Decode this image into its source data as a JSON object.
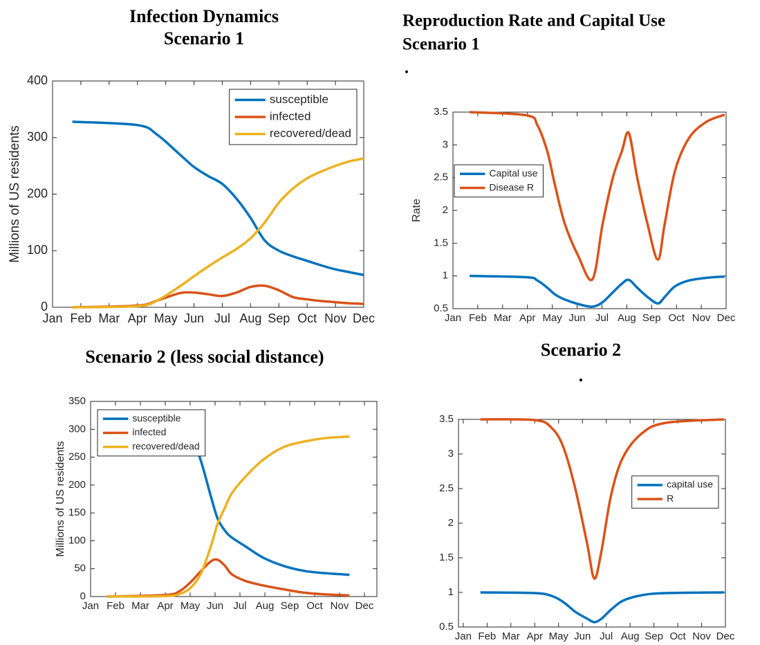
{
  "chart_data": [
    {
      "type": "line",
      "title": "Infection Dynamics",
      "subtitle": "Scenario 1",
      "y_label": "Millions of US residents",
      "x": [
        1.7,
        4.0,
        4.7,
        5.5,
        6.0,
        6.5,
        7.0,
        7.5,
        8.0,
        8.5,
        9.0,
        9.5,
        10.0,
        10.5,
        11.0,
        11.5,
        12.0
      ],
      "series": [
        {
          "name": "susceptible",
          "color": "#0072BD",
          "values": [
            328,
            322,
            305,
            270,
            248,
            232,
            218,
            192,
            158,
            118,
            100,
            90,
            82,
            74,
            67,
            62,
            57
          ]
        },
        {
          "name": "infected",
          "color": "#D95319",
          "values": [
            0,
            3,
            12,
            25,
            26,
            23,
            20,
            26,
            36,
            38,
            30,
            18,
            14,
            11,
            9,
            7,
            6
          ]
        },
        {
          "name": "recovered/dead",
          "color": "#EDB120",
          "values": [
            0,
            2,
            12,
            37,
            55,
            72,
            88,
            103,
            122,
            150,
            185,
            210,
            228,
            240,
            250,
            258,
            263
          ]
        }
      ],
      "xlim": [
        1,
        12
      ],
      "xticks": [
        {
          "value": 1,
          "label": "Jan"
        },
        {
          "value": 2,
          "label": "Feb"
        },
        {
          "value": 3,
          "label": "Mar"
        },
        {
          "value": 4,
          "label": "Apr"
        },
        {
          "value": 5,
          "label": "May"
        },
        {
          "value": 6,
          "label": "Jun"
        },
        {
          "value": 7,
          "label": "Jul"
        },
        {
          "value": 8,
          "label": "Aug"
        },
        {
          "value": 9,
          "label": "Sep"
        },
        {
          "value": 10,
          "label": "Oct"
        },
        {
          "value": 11,
          "label": "Nov"
        },
        {
          "value": 12,
          "label": "Dec"
        }
      ],
      "ylim": [
        0,
        400
      ],
      "yticks": [
        0,
        100,
        200,
        300,
        400
      ],
      "legend": "upper right"
    },
    {
      "type": "line",
      "title": "Reproduction Rate and Capital Use",
      "subtitle": "Scenario 1",
      "annotation": ".",
      "y_label": "Rate",
      "x": [
        1.67,
        3.97,
        4.4,
        4.8,
        5.1,
        5.5,
        6.05,
        6.62,
        7.03,
        7.44,
        7.8,
        8.08,
        8.42,
        8.83,
        9.25,
        9.53,
        9.94,
        10.5,
        11.2,
        11.94
      ],
      "series": [
        {
          "name": "Capital use",
          "color": "#0072BD",
          "values": [
            1.0,
            0.98,
            0.93,
            0.82,
            0.72,
            0.64,
            0.57,
            0.53,
            0.6,
            0.75,
            0.88,
            0.94,
            0.82,
            0.68,
            0.58,
            0.68,
            0.84,
            0.93,
            0.97,
            0.99
          ]
        },
        {
          "name": "Disease R",
          "color": "#D95319",
          "values": [
            3.5,
            3.45,
            3.3,
            2.9,
            2.4,
            1.8,
            1.3,
            0.95,
            1.8,
            2.5,
            2.9,
            3.18,
            2.5,
            1.8,
            1.25,
            1.8,
            2.6,
            3.1,
            3.35,
            3.46
          ]
        }
      ],
      "xlim": [
        1,
        12
      ],
      "xticks": [
        {
          "value": 1,
          "label": "Jan"
        },
        {
          "value": 2,
          "label": "Feb"
        },
        {
          "value": 3,
          "label": "Mar"
        },
        {
          "value": 4,
          "label": "Apr"
        },
        {
          "value": 5,
          "label": "May"
        },
        {
          "value": 6,
          "label": "Jun"
        },
        {
          "value": 7,
          "label": "Jul"
        },
        {
          "value": 8,
          "label": "Aug"
        },
        {
          "value": 9,
          "label": "Sep"
        },
        {
          "value": 10,
          "label": "Oct"
        },
        {
          "value": 11,
          "label": "Nov"
        },
        {
          "value": 12,
          "label": "Dec"
        }
      ],
      "ylim": [
        0.5,
        3.5
      ],
      "yticks": [
        0.5,
        1,
        1.5,
        2,
        2.5,
        3,
        3.5
      ],
      "legend": "center left"
    },
    {
      "type": "line",
      "title": "Scenario 2 (less social distance)",
      "y_label": "Millions of US residents",
      "x": [
        1.67,
        4.03,
        4.58,
        5.0,
        5.42,
        5.83,
        6.1,
        6.4,
        6.67,
        7.22,
        7.92,
        8.75,
        9.58,
        10.4,
        11.4
      ],
      "series": [
        {
          "name": "susceptible",
          "color": "#0072BD",
          "values": [
            328,
            325,
            314,
            295,
            245,
            180,
            140,
            118,
            106,
            90,
            70,
            55,
            46,
            42,
            39
          ]
        },
        {
          "name": "infected",
          "color": "#D95319",
          "values": [
            0,
            3,
            10,
            25,
            45,
            63,
            66,
            55,
            40,
            28,
            20,
            13,
            7,
            4,
            2
          ]
        },
        {
          "name": "recovered/dead",
          "color": "#EDB120",
          "values": [
            0,
            1,
            5,
            15,
            40,
            90,
            130,
            160,
            185,
            215,
            245,
            268,
            278,
            284,
            287
          ]
        }
      ],
      "xlim": [
        1,
        12.5
      ],
      "xticks": [
        {
          "value": 1,
          "label": "Jan"
        },
        {
          "value": 2,
          "label": "Feb"
        },
        {
          "value": 3,
          "label": "Mar"
        },
        {
          "value": 4,
          "label": "Apr"
        },
        {
          "value": 5,
          "label": "May"
        },
        {
          "value": 6,
          "label": "Jun"
        },
        {
          "value": 7,
          "label": "Jul"
        },
        {
          "value": 8,
          "label": "Aug"
        },
        {
          "value": 9,
          "label": "Sep"
        },
        {
          "value": 10,
          "label": "Oct"
        },
        {
          "value": 11,
          "label": "Nov"
        },
        {
          "value": 12,
          "label": "Dec"
        }
      ],
      "ylim": [
        0,
        350
      ],
      "yticks": [
        0,
        50,
        100,
        150,
        200,
        250,
        300,
        350
      ],
      "legend": "upper left"
    },
    {
      "type": "line",
      "title": "Scenario 2",
      "annotation": ".",
      "x": [
        1.72,
        4.0,
        4.7,
        5.2,
        5.7,
        6.2,
        6.5,
        6.8,
        7.2,
        7.7,
        8.5,
        9.5,
        11.94
      ],
      "series": [
        {
          "name": "capital use",
          "color": "#0072BD",
          "values": [
            1.0,
            0.99,
            0.95,
            0.86,
            0.72,
            0.62,
            0.57,
            0.62,
            0.75,
            0.88,
            0.96,
            0.99,
            1.0
          ]
        },
        {
          "name": "R",
          "color": "#D95319",
          "values": [
            3.5,
            3.49,
            3.38,
            3.1,
            2.5,
            1.7,
            1.2,
            1.6,
            2.4,
            2.95,
            3.3,
            3.45,
            3.5
          ]
        }
      ],
      "xlim": [
        0.8,
        12
      ],
      "xticks": [
        {
          "value": 1,
          "label": "Jan"
        },
        {
          "value": 2,
          "label": "Feb"
        },
        {
          "value": 3,
          "label": "Mar"
        },
        {
          "value": 4,
          "label": "Apr"
        },
        {
          "value": 5,
          "label": "May"
        },
        {
          "value": 6,
          "label": "Jun"
        },
        {
          "value": 7,
          "label": "Jul"
        },
        {
          "value": 8,
          "label": "Aug"
        },
        {
          "value": 9,
          "label": "Sep"
        },
        {
          "value": 10,
          "label": "Oct"
        },
        {
          "value": 11,
          "label": "Nov"
        },
        {
          "value": 12,
          "label": "Dec"
        }
      ],
      "ylim": [
        0.5,
        3.5
      ],
      "yticks": [
        0.5,
        1,
        1.5,
        2,
        2.5,
        3,
        3.5
      ],
      "legend": "center right"
    }
  ]
}
